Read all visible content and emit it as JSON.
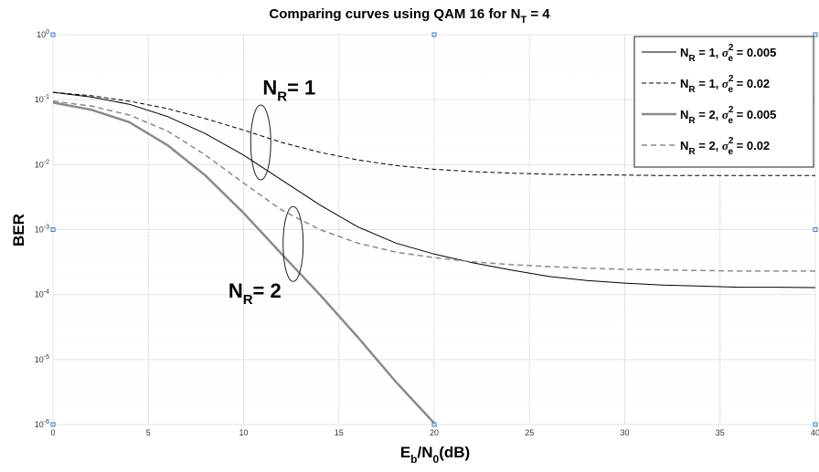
{
  "chart_data": {
    "type": "line",
    "title": {
      "main": "Comparing curves using QAM 16 for N",
      "sub": "T",
      "tail": " = 4"
    },
    "xlabel": {
      "e": "E",
      "e_sub": "b",
      "slash": "/N",
      "n_sub": "0",
      "tail": "(dB)"
    },
    "ylabel": "BER",
    "xlim": [
      0,
      40
    ],
    "ylim": [
      1e-06,
      1
    ],
    "yscale": "log",
    "grid": true,
    "legend_position": "top-right",
    "x_ticks": [
      "0",
      "5",
      "10",
      "15",
      "20",
      "25",
      "30",
      "35",
      "40"
    ],
    "y_ticks": [
      {
        "base": "10",
        "exp": "0"
      },
      {
        "base": "10",
        "exp": "-1"
      },
      {
        "base": "10",
        "exp": "-2"
      },
      {
        "base": "10",
        "exp": "-3"
      },
      {
        "base": "10",
        "exp": "-4"
      },
      {
        "base": "10",
        "exp": "-5"
      },
      {
        "base": "10",
        "exp": "-6"
      }
    ],
    "series": [
      {
        "legend": {
          "n": "N",
          "sub": "R",
          "eq": " = 1, ",
          "sigma": "σ",
          "sup": "2",
          "sigsub": "e",
          "val": " = 0.005"
        },
        "color": "#000000",
        "width": 1,
        "dash": "",
        "x": [
          0,
          2,
          4,
          6,
          8,
          10,
          12,
          14,
          16,
          18,
          20,
          22,
          24,
          26,
          28,
          30,
          32,
          34,
          36,
          38,
          40
        ],
        "y": [
          0.13,
          0.11,
          0.085,
          0.055,
          0.03,
          0.014,
          0.0058,
          0.0024,
          0.0011,
          0.00062,
          0.00042,
          0.00031,
          0.00024,
          0.00019,
          0.000165,
          0.00015,
          0.00014,
          0.000135,
          0.00013,
          0.00013,
          0.000128
        ]
      },
      {
        "legend": {
          "n": "N",
          "sub": "R",
          "eq": " = 1, ",
          "sigma": "σ",
          "sup": "2",
          "sigsub": "e",
          "val": " = 0.02"
        },
        "color": "#000000",
        "width": 1,
        "dash": "5,3",
        "x": [
          0,
          2,
          4,
          6,
          8,
          10,
          12,
          14,
          16,
          18,
          20,
          22,
          24,
          26,
          28,
          30,
          32,
          34,
          36,
          38,
          40
        ],
        "y": [
          0.13,
          0.115,
          0.095,
          0.073,
          0.051,
          0.034,
          0.022,
          0.0155,
          0.0118,
          0.0097,
          0.0085,
          0.0078,
          0.0074,
          0.0071,
          0.007,
          0.0069,
          0.0068,
          0.0068,
          0.0068,
          0.0068,
          0.0068
        ]
      },
      {
        "legend": {
          "n": "N",
          "sub": "R",
          "eq": " = 2, ",
          "sigma": "σ",
          "sup": "2",
          "sigsub": "e",
          "val": " = 0.005"
        },
        "color": "#8a8a8a",
        "width": 2.5,
        "dash": "",
        "x": [
          0,
          2,
          4,
          6,
          8,
          10,
          12,
          14,
          16,
          18,
          20
        ],
        "y": [
          0.09,
          0.07,
          0.045,
          0.02,
          0.0068,
          0.0018,
          0.00042,
          0.0001,
          2.2e-05,
          4.5e-06,
          1.05e-06
        ]
      },
      {
        "legend": {
          "n": "N",
          "sub": "R",
          "eq": " = 2, ",
          "sigma": "σ",
          "sup": "2",
          "sigsub": "e",
          "val": " = 0.02"
        },
        "color": "#8a8a8a",
        "width": 1.5,
        "dash": "6,4",
        "x": [
          0,
          2,
          4,
          6,
          8,
          10,
          12,
          14,
          16,
          18,
          20,
          22,
          24,
          26,
          28,
          30,
          32,
          34,
          36,
          38,
          40
        ],
        "y": [
          0.095,
          0.08,
          0.058,
          0.033,
          0.014,
          0.0052,
          0.002,
          0.001,
          0.00062,
          0.00045,
          0.00037,
          0.00032,
          0.00029,
          0.00027,
          0.000255,
          0.000245,
          0.00024,
          0.000235,
          0.00023,
          0.00023,
          0.00023
        ]
      }
    ],
    "annotations": [
      {
        "n": "N",
        "sub": "R",
        "tail": "= 1",
        "x": 11,
        "y": 0.12
      },
      {
        "n": "N",
        "sub": "R",
        "tail": "= 2",
        "x": 9.2,
        "y": 9e-05
      }
    ],
    "ellipses": [
      {
        "cx": 10.9,
        "cy": 0.022
      },
      {
        "cx": 12.6,
        "cy": 0.0006
      }
    ]
  }
}
